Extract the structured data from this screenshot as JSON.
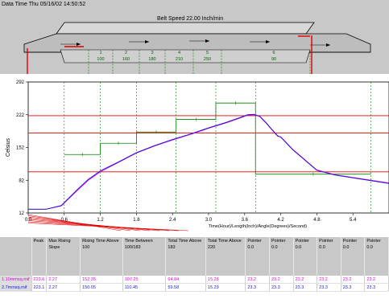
{
  "header": {
    "datetime_text": "Data Time Thu 05/16/02 14:50:52",
    "belt_speed_text": "Belt Speed 22.00 Inch/min"
  },
  "zones": [
    {
      "number": "1",
      "setpoint": "100"
    },
    {
      "number": "2",
      "setpoint": "160"
    },
    {
      "number": "3",
      "setpoint": "180"
    },
    {
      "number": "4",
      "setpoint": "210"
    },
    {
      "number": "5",
      "setpoint": "250"
    },
    {
      "number": "6",
      "setpoint": "90"
    }
  ],
  "colors": {
    "panel_bg": "#c8c8c8",
    "limit_line": "#e00000",
    "setpoint_line": "#008000",
    "zone_divider": "#008000",
    "profile_1": "#e000e0",
    "profile_2": "#1818d8"
  },
  "chart_data": {
    "type": "line",
    "xlabel": "Time(Hour)/Length(Inch)/Angle(Degrees)/Second)",
    "ylabel": "Celsius",
    "xlim": [
      0.0,
      6.0
    ],
    "ylim": [
      12,
      292
    ],
    "x_ticks": [
      "0.0",
      "0.6",
      "1.2",
      "1.8",
      "2.4",
      "3.0",
      "3.6",
      "4.2",
      "4.8",
      "5.4"
    ],
    "y_ticks": [
      "12",
      "82",
      "152",
      "222",
      "292"
    ],
    "limit_lines": [
      100,
      183,
      220
    ],
    "setpoint_steps": [
      {
        "x_start": 0.6,
        "x_end": 1.2,
        "y": 137
      },
      {
        "x_start": 1.2,
        "x_end": 1.8,
        "y": 161
      },
      {
        "x_start": 1.8,
        "x_end": 2.46,
        "y": 185
      },
      {
        "x_start": 2.46,
        "x_end": 3.12,
        "y": 212
      },
      {
        "x_start": 3.12,
        "x_end": 3.78,
        "y": 247
      },
      {
        "x_start": 3.78,
        "x_end": 5.7,
        "y": 95
      }
    ],
    "zone_boundaries": [
      0.6,
      1.2,
      1.8,
      2.46,
      3.12,
      3.78,
      5.7
    ],
    "series": [
      {
        "name": "1.10mmsq.mif",
        "x": [
          0.0,
          0.3,
          0.55,
          0.8,
          1.0,
          1.2,
          1.5,
          1.8,
          2.1,
          2.4,
          2.7,
          3.0,
          3.3,
          3.5,
          3.65,
          3.75,
          3.85,
          3.95,
          4.05,
          4.15,
          4.2,
          4.4,
          4.6,
          4.8,
          5.1,
          5.4,
          5.7,
          6.0
        ],
        "y": [
          20,
          20,
          27,
          58,
          82,
          100,
          120,
          140,
          155,
          168,
          180,
          193,
          205,
          214,
          221,
          222,
          218,
          205,
          190,
          176,
          175,
          148,
          126,
          104,
          94,
          88,
          82,
          76
        ]
      },
      {
        "name": "2.7mmsq.mif",
        "x": [
          0.0,
          0.3,
          0.55,
          0.8,
          1.0,
          1.2,
          1.5,
          1.8,
          2.1,
          2.4,
          2.7,
          3.0,
          3.3,
          3.5,
          3.65,
          3.75,
          3.85,
          3.95,
          4.05,
          4.15,
          4.2,
          4.4,
          4.6,
          4.8,
          5.1,
          5.4,
          5.7,
          6.0
        ],
        "y": [
          20,
          20,
          28,
          60,
          84,
          102,
          121,
          141,
          156,
          169,
          181,
          194,
          206,
          215,
          222,
          223,
          219,
          206,
          191,
          177,
          174,
          147,
          125,
          103,
          93,
          87,
          81,
          75
        ]
      }
    ]
  },
  "table": {
    "headers": [
      "",
      "Peak",
      "Max Rising Slope",
      "Rising Time Above 100",
      "Time Between 100/183",
      "Total Time Above 183",
      "Total Time Above 220",
      "Pointer 0.0",
      "Pointer 0.0",
      "Pointer 0.0",
      "Pointer 0.0",
      "Pointer 0.0",
      "Pointer 0.0"
    ],
    "rows": [
      [
        "1.10mmsq.mif",
        "223.6",
        "2.27",
        "152.35",
        "107.25",
        "64.84",
        "15.28",
        "23.2",
        "23.2",
        "23.2",
        "23.2",
        "23.2",
        "23.2"
      ],
      [
        "2.7mmsq.mif",
        "223.1",
        "2.27",
        "150.05",
        "110.45",
        "59.58",
        "15.29",
        "23.3",
        "23.3",
        "23.3",
        "23.3",
        "23.3",
        "23.3"
      ]
    ]
  }
}
